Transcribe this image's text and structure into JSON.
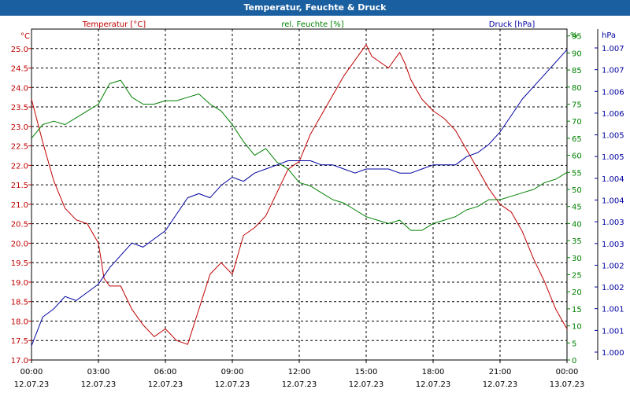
{
  "window": {
    "title": "Temperatur, Feuchte & Druck"
  },
  "chart_data": {
    "type": "line",
    "title": "Temperatur, Feuchte & Druck",
    "x": {
      "tick_times": [
        "00:00",
        "03:00",
        "06:00",
        "09:00",
        "12:00",
        "15:00",
        "18:00",
        "21:00",
        "00:00"
      ],
      "tick_dates": [
        "12.07.23",
        "12.07.23",
        "12.07.23",
        "12.07.23",
        "12.07.23",
        "12.07.23",
        "12.07.23",
        "12.07.23",
        "13.07.23"
      ],
      "range_hours": [
        0,
        24
      ]
    },
    "axes": {
      "temperature": {
        "unit": "°C",
        "side": "left",
        "range": [
          17.0,
          25.5
        ],
        "ticks": [
          "17.0",
          "17.5",
          "18.0",
          "18.5",
          "19.0",
          "19.5",
          "20.0",
          "20.5",
          "21.0",
          "21.5",
          "22.0",
          "22.5",
          "23.0",
          "23.5",
          "24.0",
          "24.5",
          "25.0"
        ]
      },
      "humidity": {
        "unit": "%",
        "side": "right-inner",
        "range": [
          0,
          97
        ],
        "ticks": [
          "0",
          "5",
          "10",
          "15",
          "20",
          "25",
          "30",
          "35",
          "40",
          "45",
          "50",
          "55",
          "60",
          "65",
          "70",
          "75",
          "80",
          "85",
          "90",
          "95"
        ]
      },
      "pressure": {
        "unit": "hPa",
        "side": "right-outer",
        "ticks": [
          "1.000",
          "1.001",
          "1.001",
          "1.002",
          "1.002",
          "1.003",
          "1.003",
          "1.004",
          "1.004",
          "1.005",
          "1.005",
          "1.006",
          "1.006",
          "1.007",
          "1.007"
        ]
      }
    },
    "series": [
      {
        "name": "Temperatur [°C]",
        "axis": "temperature",
        "color": "#c00000",
        "x": [
          0,
          0.5,
          1,
          1.5,
          2,
          2.5,
          3,
          3.25,
          3.5,
          4,
          4.5,
          5,
          5.5,
          6,
          6.5,
          7,
          7.5,
          8,
          8.5,
          9,
          9.5,
          10,
          10.5,
          11,
          11.5,
          12,
          12.5,
          13,
          13.5,
          14,
          14.5,
          15,
          15.25,
          15.5,
          16,
          16.5,
          16.75,
          17,
          17.5,
          18,
          18.5,
          19,
          19.5,
          20,
          20.5,
          21,
          21.5,
          22,
          22.5,
          23,
          23.5,
          24
        ],
        "values": [
          23.7,
          22.6,
          21.6,
          20.9,
          20.6,
          20.5,
          20.0,
          19.1,
          18.9,
          18.9,
          18.3,
          17.9,
          17.6,
          17.8,
          17.5,
          17.4,
          18.3,
          19.2,
          19.5,
          19.2,
          20.2,
          20.4,
          20.7,
          21.3,
          21.9,
          22.1,
          22.8,
          23.3,
          23.8,
          24.3,
          24.7,
          25.1,
          24.8,
          24.7,
          24.5,
          24.9,
          24.6,
          24.2,
          23.7,
          23.4,
          23.2,
          22.9,
          22.4,
          21.9,
          21.4,
          21.0,
          20.8,
          20.3,
          19.6,
          19.0,
          18.3,
          17.8
        ]
      },
      {
        "name": "rel. Feuchte [%]",
        "axis": "humidity",
        "color": "#008000",
        "x": [
          0,
          0.5,
          1,
          1.5,
          2,
          2.5,
          3,
          3.5,
          4,
          4.5,
          5,
          5.5,
          6,
          6.5,
          7,
          7.5,
          8,
          8.5,
          9,
          9.5,
          10,
          10.5,
          11,
          11.5,
          12,
          12.5,
          13,
          13.5,
          14,
          14.5,
          15,
          15.5,
          16,
          16.5,
          17,
          17.5,
          18,
          18.5,
          19,
          19.5,
          20,
          20.5,
          21,
          21.5,
          22,
          22.5,
          23,
          23.5,
          24
        ],
        "values": [
          65,
          69,
          70,
          69,
          71,
          73,
          75,
          81,
          82,
          77,
          75,
          75,
          76,
          76,
          77,
          78,
          75,
          73,
          69,
          64,
          60,
          62,
          58,
          56,
          52,
          51,
          49,
          47,
          46,
          44,
          42,
          41,
          40,
          41,
          38,
          38,
          40,
          41,
          42,
          44,
          45,
          47,
          47,
          48,
          49,
          50,
          52,
          53,
          55
        ]
      },
      {
        "name": "Druck [hPa]",
        "axis": "pressure",
        "color": "#0000a0",
        "x": [
          0,
          0.5,
          1,
          1.5,
          2,
          2.5,
          3,
          3.5,
          4,
          4.5,
          5,
          5.5,
          6,
          6.5,
          7,
          7.5,
          8,
          8.5,
          9,
          9.5,
          10,
          10.5,
          11,
          11.5,
          12,
          12.5,
          13,
          13.5,
          14,
          14.5,
          15,
          15.5,
          16,
          16.5,
          17,
          17.5,
          18,
          18.5,
          19,
          19.5,
          20,
          20.5,
          21,
          21.5,
          22,
          22.5,
          23,
          23.5,
          24
        ],
        "values": [
          1000.0,
          1000.7,
          1000.9,
          1001.2,
          1001.1,
          1001.3,
          1001.5,
          1001.9,
          1002.2,
          1002.5,
          1002.4,
          1002.6,
          1002.8,
          1003.2,
          1003.6,
          1003.7,
          1003.6,
          1003.9,
          1004.1,
          1004.0,
          1004.2,
          1004.3,
          1004.4,
          1004.5,
          1004.5,
          1004.5,
          1004.4,
          1004.4,
          1004.3,
          1004.2,
          1004.3,
          1004.3,
          1004.3,
          1004.2,
          1004.2,
          1004.3,
          1004.4,
          1004.4,
          1004.4,
          1004.6,
          1004.7,
          1004.9,
          1005.2,
          1005.6,
          1006.0,
          1006.3,
          1006.6,
          1006.9,
          1007.2
        ]
      }
    ]
  }
}
